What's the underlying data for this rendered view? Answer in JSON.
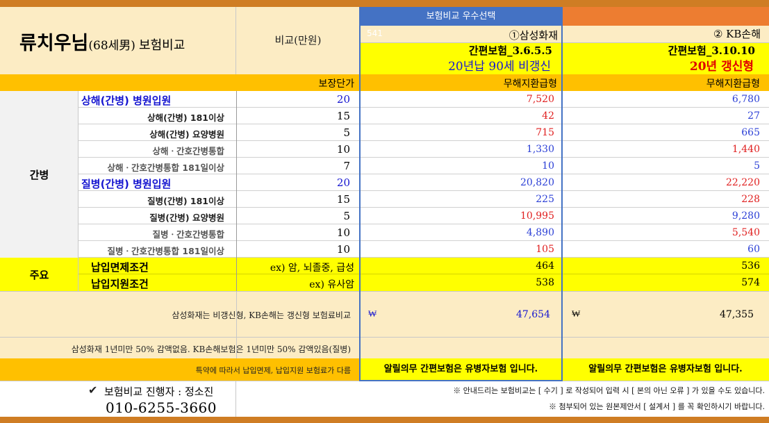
{
  "title": {
    "name": "류치우님",
    "detail": "(68세男)",
    "suffix": "보험비교"
  },
  "compare_unit": "비교(만원)",
  "recommend_label": "보험비교 우수선택",
  "faint_tag": "541",
  "col1": {
    "company": "①삼성화재",
    "product": "간편보험_3.6.5.5",
    "type": "20년납 90세 비갱신"
  },
  "col2": {
    "company": "② KB손해",
    "product": "간편보험_3.10.10",
    "type": "20년 갱신형"
  },
  "header_row": {
    "unit_label": "보장단가",
    "col1": "무해지환급형",
    "col2": "무해지환급형"
  },
  "group_main": "간병",
  "rows": [
    {
      "label": "상해(간병) 병원입원",
      "unit": "20",
      "v1": "7,520",
      "v2": "6,780"
    },
    {
      "label": "상해(간병) 181이상",
      "unit": "15",
      "v1": "42",
      "v2": "27"
    },
    {
      "label": "상해(간병) 요양병원",
      "unit": "5",
      "v1": "715",
      "v2": "665"
    },
    {
      "label": "상해ㆍ간호간병통합",
      "unit": "10",
      "v1": "1,330",
      "v2": "1,440"
    },
    {
      "label": "상해ㆍ간호간병통합 181일이상",
      "unit": "7",
      "v1": "10",
      "v2": "5"
    },
    {
      "label": "질병(간병) 병원입원",
      "unit": "20",
      "v1": "20,820",
      "v2": "22,220"
    },
    {
      "label": "질병(간병) 181이상",
      "unit": "15",
      "v1": "225",
      "v2": "228"
    },
    {
      "label": "질병(간병) 요양병원",
      "unit": "5",
      "v1": "10,995",
      "v2": "9,280"
    },
    {
      "label": "질병ㆍ간호간병통합",
      "unit": "10",
      "v1": "4,890",
      "v2": "5,540"
    },
    {
      "label": "질병ㆍ간호간병통합 181일이상",
      "unit": "10",
      "v1": "105",
      "v2": "60"
    }
  ],
  "group_major": "주요",
  "major_rows": [
    {
      "label": "납입면제조건",
      "example": "ex) 암, 뇌졸중, 급성",
      "v1": "464",
      "v2": "536"
    },
    {
      "label": "납입지원조건",
      "example": "ex) 유사암",
      "v1": "538",
      "v2": "574"
    }
  ],
  "total": {
    "note": "삼성화재는 비갱신형, KB손해는 갱신형 보험료비교",
    "currency": "₩",
    "v1": "47,654",
    "v2": "47,355"
  },
  "discount_note": "삼성화재 1년미만 50% 감액없음. KB손해보험은 1년미만 50% 감액있음(질병)",
  "special_note": "특약에 따라서 납입면제, 납입지원 보험료가 다름",
  "disclosure": "알릴의무 간편보험은 유병자보험 입니다.",
  "agent": {
    "check_icon": "✔",
    "label": "보험비교 진행자 : 정소진",
    "phone": "010-6255-3660"
  },
  "footer_notes": [
    "※ 안내드리는 보험비교는 [ 수기 ] 로 작성되어 입력 시 [ 본의 아닌 오류 ] 가 있을 수도 있습니다.",
    "※ 첨부되어 있는 원본제안서 [ 설계서 ] 를 꼭 확인하시기 바랍니다."
  ],
  "colors": {
    "orange_bar": "#cf7d24",
    "header_bg": "#fcecc4",
    "accent_blue": "#4472c4",
    "kb_orange": "#ed7d31",
    "yellow": "#ffff00",
    "gold": "#ffc000",
    "value_red": "#e02020",
    "value_blue": "#2b3fd6",
    "label_blue": "#1515d0",
    "gray_bg": "#f2f2f2"
  }
}
